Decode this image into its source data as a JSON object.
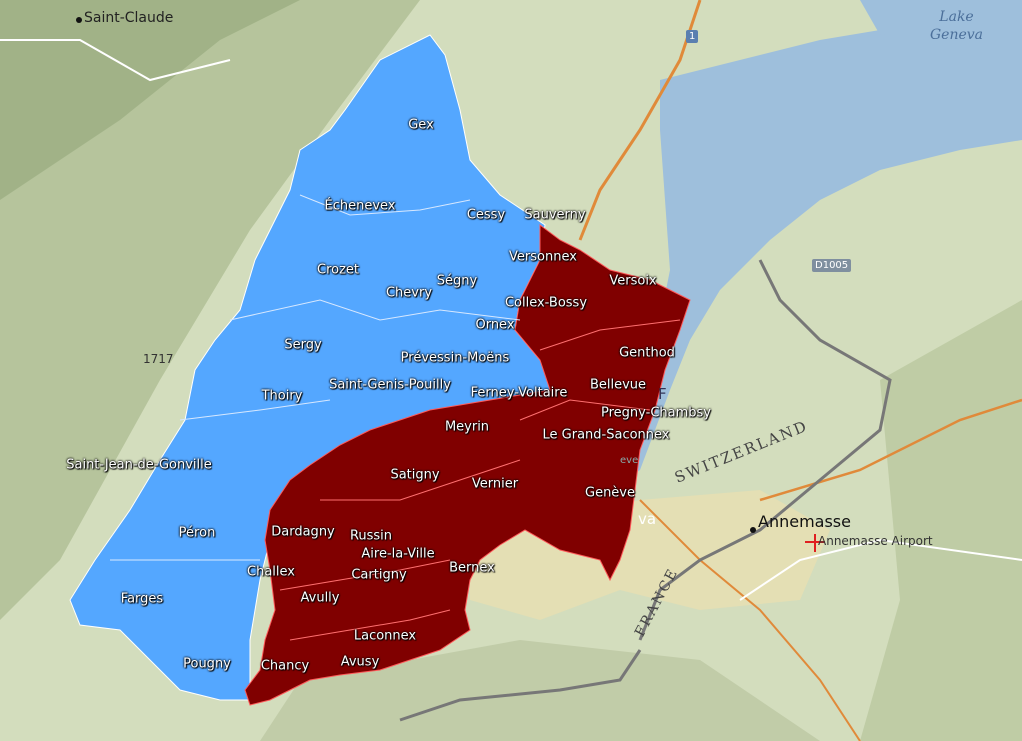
{
  "basemap": {
    "cities": [
      {
        "name": "Saint-Claude"
      },
      {
        "name": "Annemasse"
      }
    ],
    "water_labels": [
      "Lake",
      "Geneva"
    ],
    "road_shields": [
      {
        "text": "1"
      },
      {
        "text": "D1005"
      }
    ],
    "elevation": "1717",
    "airport": "Annemasse Airport",
    "border_label": "SWITZERLAND",
    "border_label_2": "FRANCE",
    "partial_labels": [
      "F",
      "va",
      "eve"
    ]
  },
  "regions": {
    "blue_color": "#54a7ff",
    "red_color": "#800000",
    "blue": [
      "Gex",
      "Échenevex",
      "Cessy",
      "Crozet",
      "Ségny",
      "Chevry",
      "Ornex",
      "Sergy",
      "Prévessin-Moëns",
      "Saint-Genis-Pouilly",
      "Ferney-Voltaire",
      "Thoiry",
      "Saint-Jean-de-Gonville",
      "Péron",
      "Challex",
      "Farges",
      "Pougny"
    ],
    "red": [
      "Sauverny",
      "Versonnex",
      "Versoix",
      "Collex-Bossy",
      "Genthod",
      "Bellevue",
      "Pregny-Chambsy",
      "Le Grand-Saconnex",
      "Meyrin",
      "Satigny",
      "Vernier",
      "Genève",
      "Dardagny",
      "Russin",
      "Aire-la-Ville",
      "Cartigny",
      "Bernex",
      "Avully",
      "Laconnex",
      "Chancy",
      "Avusy"
    ]
  }
}
